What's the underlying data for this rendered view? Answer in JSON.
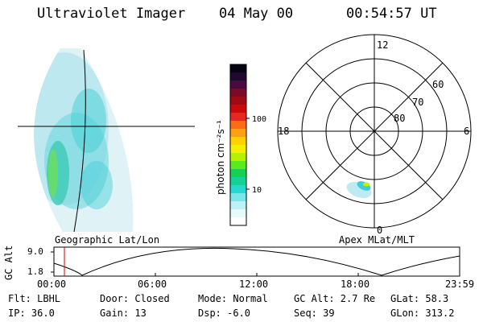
{
  "header": {
    "instrument": "Ultraviolet Imager",
    "date": "04 May 00",
    "time": "00:54:57 UT"
  },
  "panels": {
    "left_label": "Geographic Lat/Lon",
    "right_label": "Apex MLat/MLT"
  },
  "colorbar": {
    "unit_label": "photon cm⁻²s⁻¹",
    "ticks": [
      "100",
      "10"
    ],
    "colors": [
      "#050314",
      "#200830",
      "#4a0a40",
      "#7a0a28",
      "#a00a14",
      "#c80a0a",
      "#e8281e",
      "#ff6a14",
      "#ffa014",
      "#ffd200",
      "#f0f000",
      "#b4f000",
      "#5aeb1e",
      "#14d250",
      "#14d296",
      "#28d7d2",
      "#78e6eb",
      "#bef0f5",
      "#e6fafc",
      "#ffffff"
    ]
  },
  "polar": {
    "mlt_labels": {
      "top": "12",
      "left": "18",
      "right": "6",
      "bottom": "0"
    },
    "lat_labels": [
      "60",
      "70",
      "80"
    ]
  },
  "alt_plot": {
    "ylabel": "GC Alt",
    "yticks": [
      "9.0",
      "1.8"
    ],
    "xticks": [
      "00:00",
      "06:00",
      "12:00",
      "18:00",
      "23:59"
    ],
    "marker_color": "#c80000"
  },
  "info": {
    "flt": "Flt: LBHL",
    "door": "Door: Closed",
    "mode": "Mode: Normal",
    "gcalt": "GC Alt: 2.7 Re",
    "glat": "GLat: 58.3",
    "ip": "IP: 36.0",
    "gain": "Gain: 13",
    "dsp": "Dsp:   -6.0",
    "seq": "Seq: 39",
    "glon": "GLon: 313.2"
  }
}
